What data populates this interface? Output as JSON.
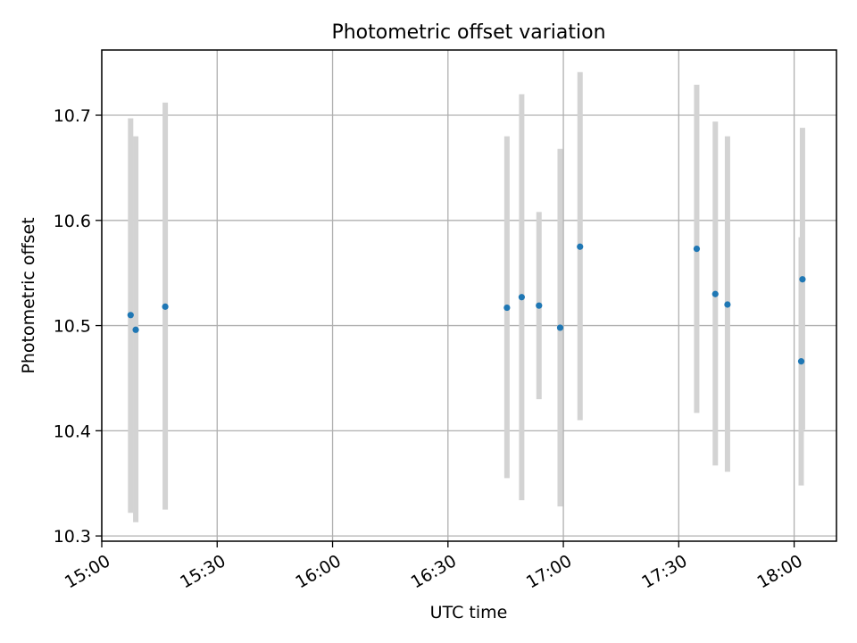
{
  "chart_data": {
    "type": "scatter",
    "title": "Photometric offset variation",
    "xlabel": "UTC time",
    "ylabel": "Photometric offset",
    "x_unit": "time of day (HH:MM)",
    "xlim": [
      "15:00",
      "18:11"
    ],
    "ylim": [
      10.295,
      10.762
    ],
    "xticks": [
      "15:00",
      "15:30",
      "16:00",
      "16:30",
      "17:00",
      "17:30",
      "18:00"
    ],
    "yticks": [
      10.3,
      10.4,
      10.5,
      10.6,
      10.7
    ],
    "grid": true,
    "legend": "none",
    "colors": {
      "points": "#1f77b4",
      "errorbars": "#d3d3d3",
      "grid": "#b0b0b0"
    },
    "points": [
      {
        "x": "15:07:30",
        "y": 10.51,
        "err_low": 10.322,
        "err_high": 10.697
      },
      {
        "x": "15:08:50",
        "y": 10.496,
        "err_low": 10.313,
        "err_high": 10.68
      },
      {
        "x": "15:16:30",
        "y": 10.518,
        "err_low": 10.325,
        "err_high": 10.712
      },
      {
        "x": "16:45:20",
        "y": 10.517,
        "err_low": 10.355,
        "err_high": 10.68
      },
      {
        "x": "16:49:10",
        "y": 10.527,
        "err_low": 10.334,
        "err_high": 10.72
      },
      {
        "x": "16:53:40",
        "y": 10.519,
        "err_low": 10.43,
        "err_high": 10.608
      },
      {
        "x": "16:59:10",
        "y": 10.498,
        "err_low": 10.328,
        "err_high": 10.668
      },
      {
        "x": "17:04:20",
        "y": 10.575,
        "err_low": 10.41,
        "err_high": 10.741
      },
      {
        "x": "17:34:40",
        "y": 10.573,
        "err_low": 10.417,
        "err_high": 10.729
      },
      {
        "x": "17:39:30",
        "y": 10.53,
        "err_low": 10.367,
        "err_high": 10.694
      },
      {
        "x": "17:42:40",
        "y": 10.52,
        "err_low": 10.361,
        "err_high": 10.68
      },
      {
        "x": "18:01:50",
        "y": 10.466,
        "err_low": 10.348,
        "err_high": 10.584
      },
      {
        "x": "18:02:10",
        "y": 10.544,
        "err_low": 10.401,
        "err_high": 10.688
      }
    ]
  }
}
